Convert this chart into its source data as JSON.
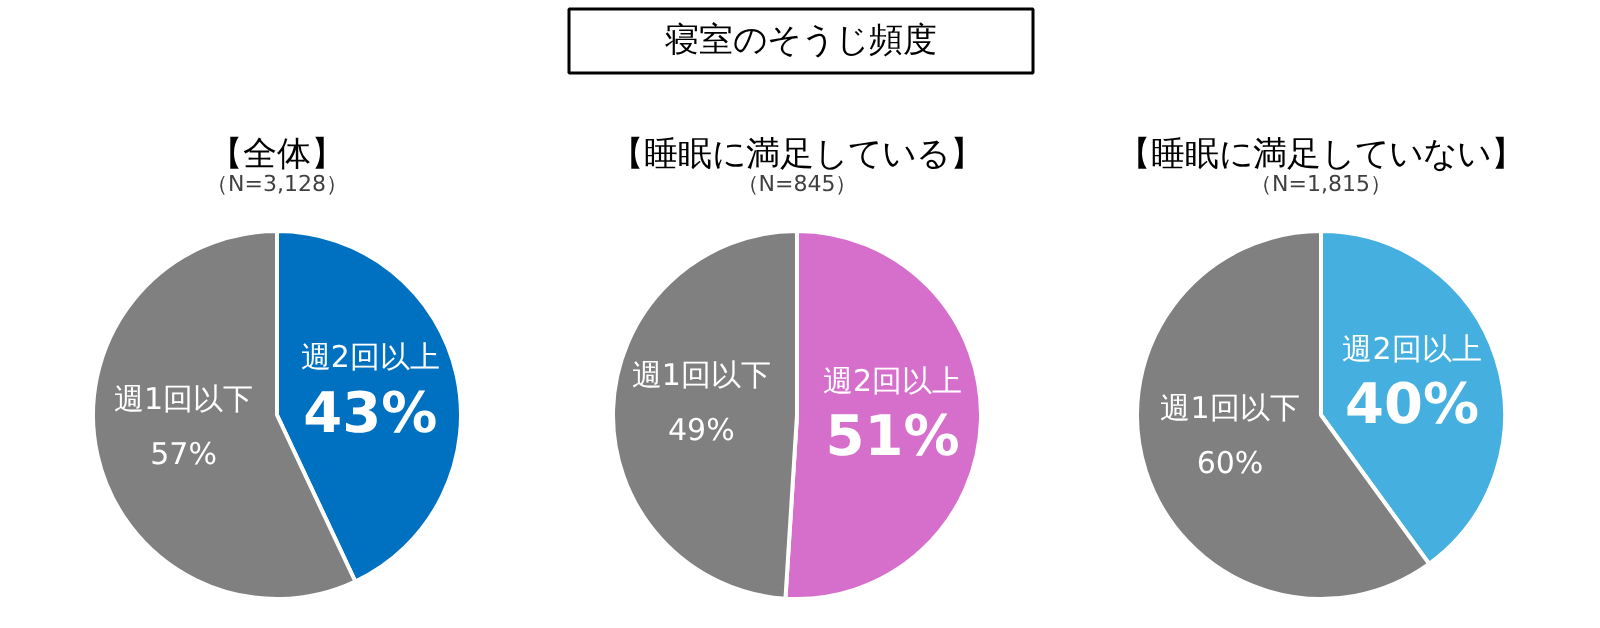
{
  "chart_data": [
    {
      "type": "other",
      "title": "寝室のそうじ頻度"
    },
    {
      "type": "pie",
      "title": "【全体】",
      "subtitle": "（N=3,128）",
      "categories": [
        "週2回以上",
        "週1回以下"
      ],
      "values": [
        43,
        57
      ],
      "colors": [
        "#0070c0",
        "#808080"
      ],
      "value_labels": [
        "43%",
        "57%"
      ]
    },
    {
      "type": "pie",
      "title": "【睡眠に満足している】",
      "subtitle": "（N=845）",
      "categories": [
        "週2回以上",
        "週1回以下"
      ],
      "values": [
        51,
        49
      ],
      "colors": [
        "#d66fcc",
        "#808080"
      ],
      "value_labels": [
        "51%",
        "49%"
      ]
    },
    {
      "type": "pie",
      "title": "【睡眠に満足していない】",
      "subtitle": "（N=1,815）",
      "categories": [
        "週2回以上",
        "週1回以下"
      ],
      "values": [
        40,
        60
      ],
      "colors": [
        "#45afe0",
        "#808080"
      ],
      "value_labels": [
        "40%",
        "60%"
      ]
    }
  ]
}
